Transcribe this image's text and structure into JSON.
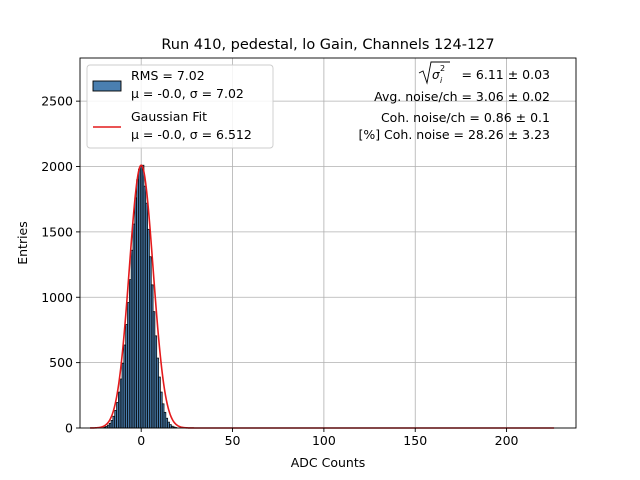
{
  "chart_data": {
    "type": "bar",
    "title": "Run 410, pedestal, lo Gain, Channels 124-127",
    "xlabel": "ADC Counts",
    "ylabel": "Entries",
    "xlim": [
      -33.5,
      238
    ],
    "ylim": [
      0,
      2830
    ],
    "x_ticks": [
      "0",
      "50",
      "100",
      "150",
      "200"
    ],
    "x_tick_values": [
      0,
      50,
      100,
      150,
      200
    ],
    "y_ticks": [
      "0",
      "500",
      "1000",
      "1500",
      "2000",
      "2500"
    ],
    "y_tick_values": [
      0,
      500,
      1000,
      1500,
      2000,
      2500
    ],
    "grid": true,
    "legend_placement": "top-left",
    "bin_width": 1,
    "bins": [
      {
        "x": -20,
        "y": 7
      },
      {
        "x": -19,
        "y": 12
      },
      {
        "x": -18,
        "y": 22
      },
      {
        "x": -17,
        "y": 36
      },
      {
        "x": -16,
        "y": 58
      },
      {
        "x": -15,
        "y": 90
      },
      {
        "x": -14,
        "y": 135
      },
      {
        "x": -13,
        "y": 196
      },
      {
        "x": -12,
        "y": 275
      },
      {
        "x": -11,
        "y": 375
      },
      {
        "x": -10,
        "y": 495
      },
      {
        "x": -9,
        "y": 635
      },
      {
        "x": -8,
        "y": 792
      },
      {
        "x": -7,
        "y": 960
      },
      {
        "x": -6,
        "y": 1135
      },
      {
        "x": -5,
        "y": 1360
      },
      {
        "x": -4,
        "y": 1560
      },
      {
        "x": -3,
        "y": 1760
      },
      {
        "x": -2,
        "y": 1900
      },
      {
        "x": -1,
        "y": 1980
      },
      {
        "x": 0,
        "y": 2000
      },
      {
        "x": 1,
        "y": 2010
      },
      {
        "x": 2,
        "y": 1850
      },
      {
        "x": 3,
        "y": 1720
      },
      {
        "x": 4,
        "y": 1520
      },
      {
        "x": 5,
        "y": 1310
      },
      {
        "x": 6,
        "y": 1095
      },
      {
        "x": 7,
        "y": 890
      },
      {
        "x": 8,
        "y": 705
      },
      {
        "x": 9,
        "y": 535
      },
      {
        "x": 10,
        "y": 390
      },
      {
        "x": 11,
        "y": 275
      },
      {
        "x": 12,
        "y": 185
      },
      {
        "x": 13,
        "y": 120
      },
      {
        "x": 14,
        "y": 75
      },
      {
        "x": 15,
        "y": 45
      },
      {
        "x": 16,
        "y": 26
      },
      {
        "x": 17,
        "y": 14
      },
      {
        "x": 18,
        "y": 8
      },
      {
        "x": 19,
        "y": 4
      }
    ],
    "series": [
      {
        "name": "RMS = 7.02",
        "type": "histogram",
        "color": "#4a7fb0"
      },
      {
        "name": "Gaussian Fit",
        "type": "line",
        "color": "#e41a1c",
        "mu": 0.0,
        "sigma": 6.512,
        "amplitude": 2010,
        "x_range": [
          -28,
          226
        ]
      }
    ],
    "legend": [
      {
        "line1": "RMS = 7.02",
        "line2": "μ = -0.0, σ = 7.02",
        "kind": "patch",
        "color": "#4a7fb0"
      },
      {
        "line1": "Gaussian Fit",
        "line2": "μ = -0.0, σ = 6.512",
        "kind": "line",
        "color": "#e41a1c"
      }
    ],
    "annotations": {
      "sigma_value": "= 6.11 ± 0.03",
      "avg_noise": "Avg. noise/ch = 3.06 ± 0.02",
      "coh_noise": "Coh. noise/ch = 0.86 ± 0.1",
      "coh_noise_pct": "[%] Coh. noise = 28.26 ± 3.23"
    }
  }
}
